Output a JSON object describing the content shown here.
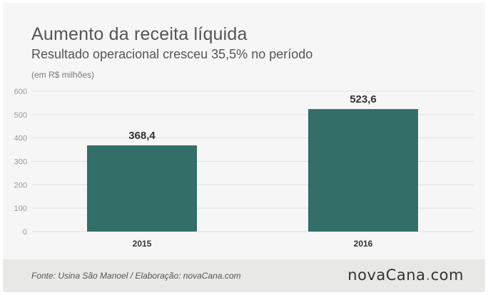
{
  "header": {
    "title": "Aumento da receita líquida",
    "subtitle": "Resultado operacional cresceu 35,5% no período",
    "unit": "(em R$ milhões)"
  },
  "footer": {
    "source": "Fonte: Usina São Manoel / Elaboração: novaCana.com",
    "logo_main": "novaCana",
    "logo_dot": ".",
    "logo_tld": "com"
  },
  "colors": {
    "bar": "#336e69",
    "grid": "#e2e2e2",
    "accent": "#3f9a8a"
  },
  "chart_data": {
    "type": "bar",
    "title": "Aumento da receita líquida",
    "subtitle": "Resultado operacional cresceu 35,5% no período",
    "ylabel": "(em R$ milhões)",
    "xlabel": "",
    "categories": [
      "2015",
      "2016"
    ],
    "values": [
      368.4,
      523.6
    ],
    "value_labels": [
      "368,4",
      "523,6"
    ],
    "yticks": [
      0,
      100,
      200,
      300,
      400,
      500,
      600
    ],
    "ylim": [
      0,
      600
    ],
    "grid": true,
    "legend": "none"
  }
}
